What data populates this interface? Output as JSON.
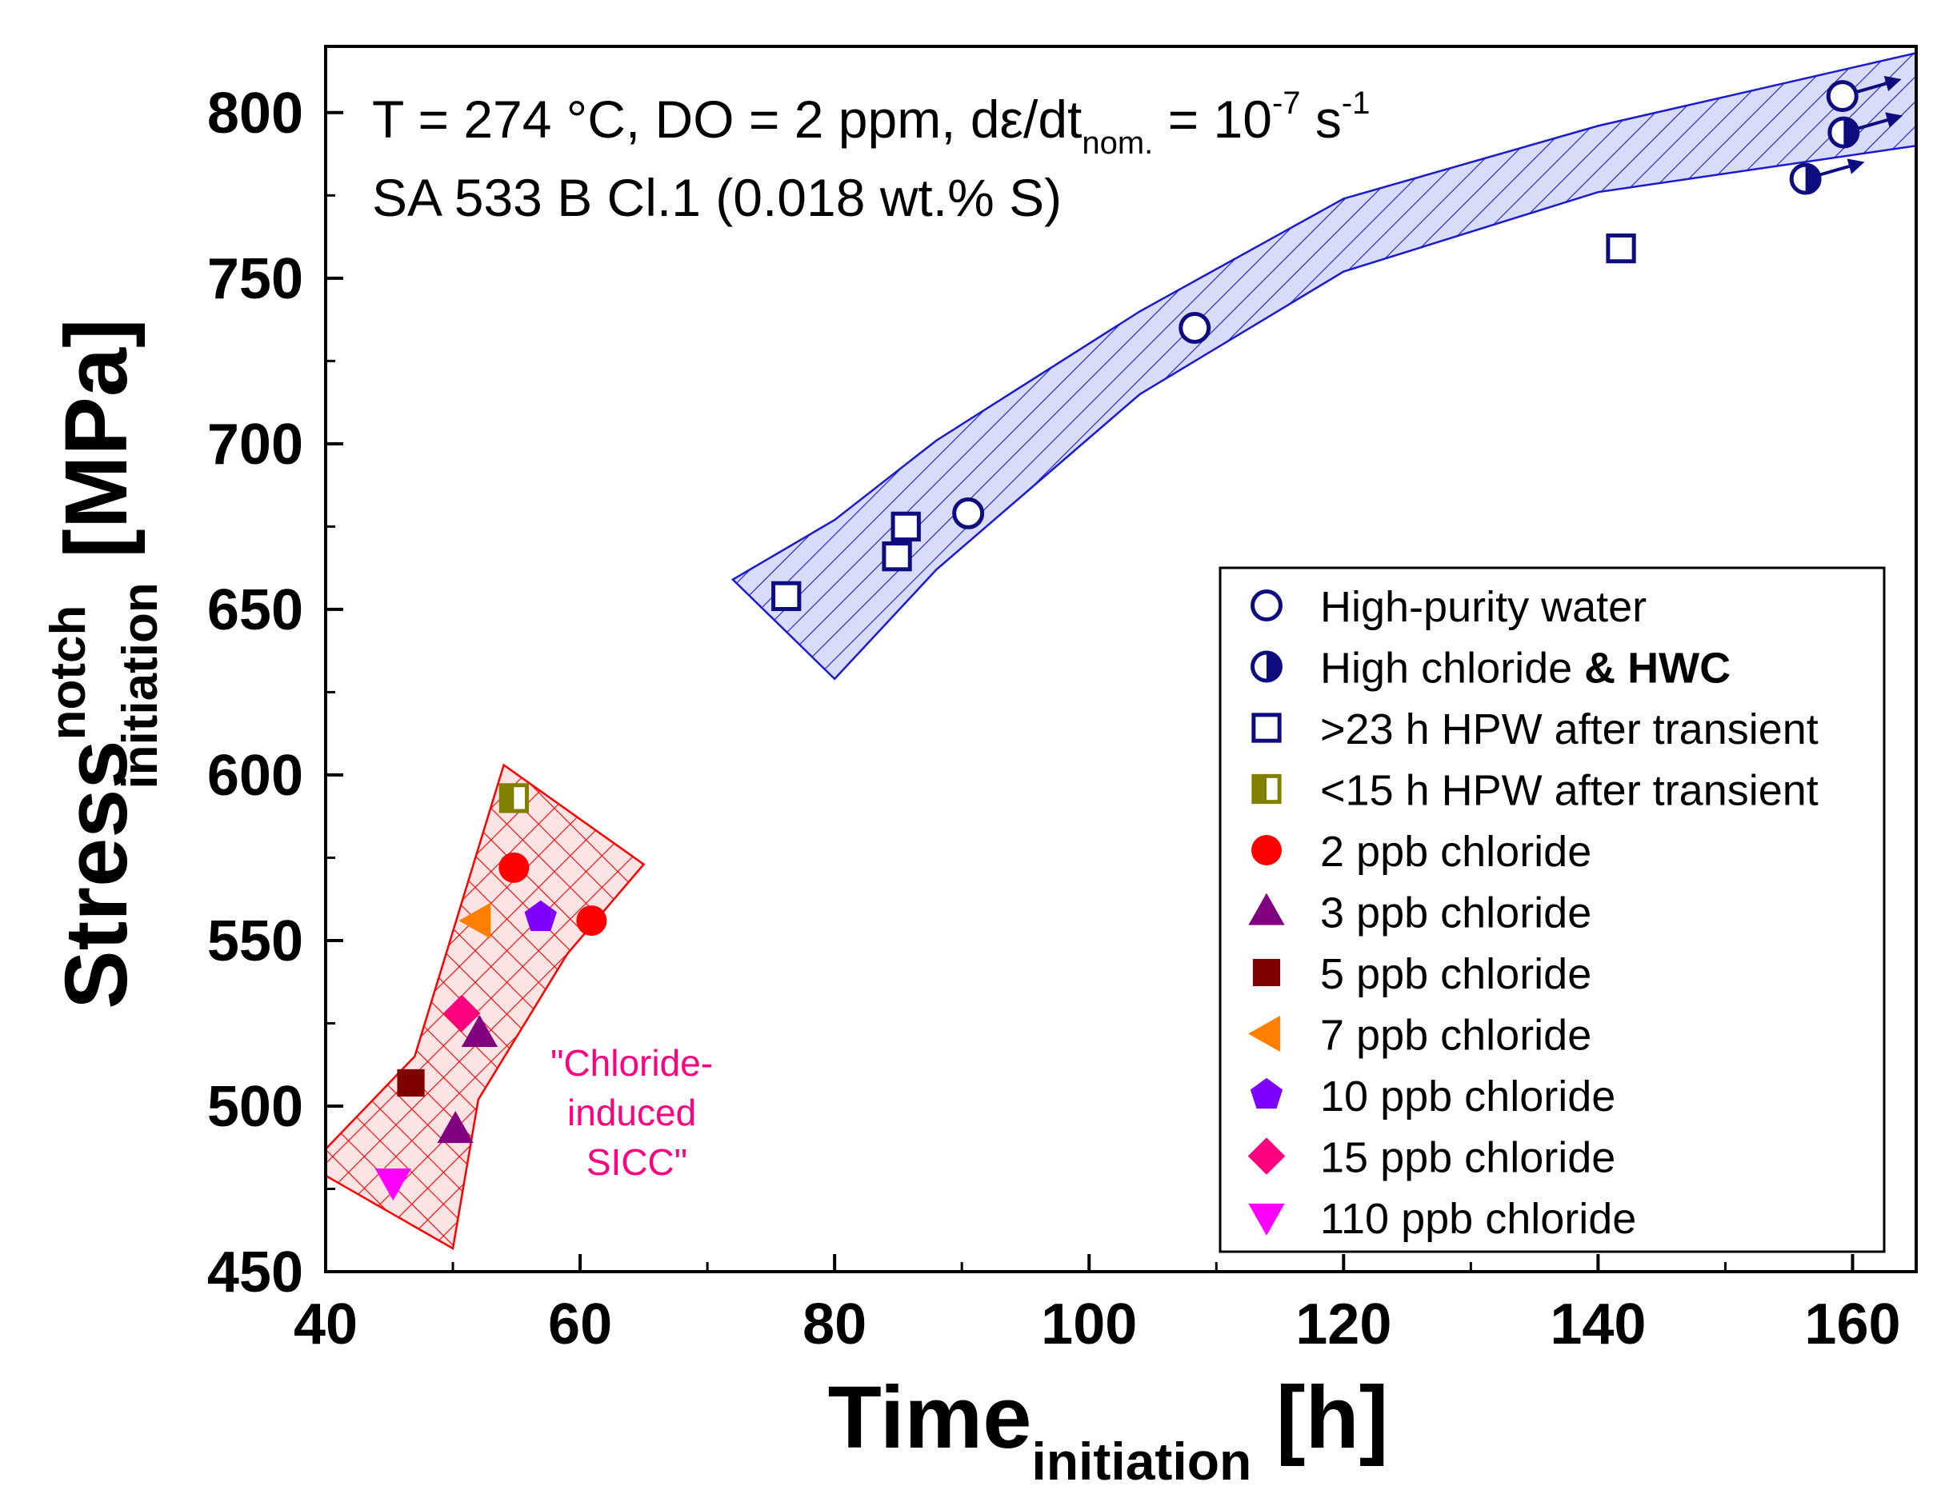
{
  "chart_data": {
    "type": "scatter",
    "annotations": {
      "line1_main": "T = 274 °C, DO = 2 ppm, dε/dt",
      "line1_sub": "nom.",
      "line1_eq": " = 10",
      "line1_exp": "-7",
      "line1_unit": " s",
      "line1_unit_exp": "-1",
      "line2": "SA 533 B Cl.1 (0.018 wt.% S)",
      "sicc_1": "\"Chloride-",
      "sicc_2": "induced",
      "sicc_3": "SICC\""
    },
    "xaxis": {
      "label_main": "Time",
      "label_sub": "initiation",
      "label_unit": " [h]",
      "min": 40,
      "max": 165,
      "ticks": [
        40,
        60,
        80,
        100,
        120,
        140,
        160
      ]
    },
    "yaxis": {
      "label_main": "Stress",
      "label_sup": "notch",
      "label_sub": "initiation",
      "label_unit": " [MPa]",
      "min": 450,
      "max": 820,
      "ticks": [
        450,
        500,
        550,
        600,
        650,
        700,
        750,
        800
      ]
    },
    "colors": {
      "navy": "#0d0d80",
      "olive": "#808000",
      "red": "#ff0000",
      "purple": "#800080",
      "maroon": "#800000",
      "orange": "#ff8000",
      "violet": "#8000ff",
      "pink": "#ff0080",
      "magenta": "#ff00ff",
      "band_blue": "#1a1ad0",
      "band_blue_fill": "#d8dcf8",
      "band_red": "#ff0000",
      "band_red_fill": "#fde4e4",
      "sicc_text": "#ff0080"
    },
    "bands": [
      {
        "name": "hpw-band",
        "polygon": [
          [
            72,
            659
          ],
          [
            80,
            629
          ],
          [
            88,
            662
          ],
          [
            104,
            715
          ],
          [
            120,
            752
          ],
          [
            140,
            776
          ],
          [
            165,
            790
          ],
          [
            165,
            818
          ],
          [
            140,
            796
          ],
          [
            120,
            774
          ],
          [
            104,
            740
          ],
          [
            88,
            701
          ],
          [
            80,
            677
          ]
        ]
      },
      {
        "name": "chloride-band",
        "polygon": [
          [
            40,
            487
          ],
          [
            47,
            515
          ],
          [
            54,
            603
          ],
          [
            65,
            573
          ],
          [
            59,
            546
          ],
          [
            52,
            502
          ],
          [
            50,
            457
          ],
          [
            40,
            479
          ]
        ]
      }
    ],
    "series": [
      {
        "name": "High-purity water",
        "marker": "circle-open",
        "color": "#0d0d80",
        "points": [
          [
            90.5,
            679
          ],
          [
            108.3,
            735
          ],
          [
            159.2,
            805
          ]
        ]
      },
      {
        "name": "High chloride & HWC",
        "name_main": "High chloride ",
        "name_bold": "& HWC",
        "marker": "circle-half",
        "color": "#0d0d80",
        "arrows": true,
        "points": [
          [
            156.3,
            780
          ],
          [
            159.3,
            794
          ]
        ]
      },
      {
        "name": ">23 h HPW after transient",
        "marker": "square-open",
        "color": "#0d0d80",
        "points": [
          [
            76.2,
            654
          ],
          [
            84.9,
            666
          ],
          [
            85.6,
            675
          ],
          [
            141.8,
            759
          ]
        ]
      },
      {
        "name": "<15 h HPW after transient",
        "marker": "square-half",
        "color": "#808000",
        "points": [
          [
            54.8,
            593
          ]
        ]
      },
      {
        "name": "2 ppb chloride",
        "marker": "circle",
        "color": "#ff0000",
        "points": [
          [
            54.8,
            572
          ],
          [
            60.9,
            556
          ]
        ]
      },
      {
        "name": "3 ppb chloride",
        "marker": "triangle-up",
        "color": "#800080",
        "points": [
          [
            52.1,
            522
          ],
          [
            50.2,
            493
          ]
        ]
      },
      {
        "name": "5 ppb chloride",
        "marker": "square",
        "color": "#800000",
        "points": [
          [
            46.7,
            507
          ]
        ]
      },
      {
        "name": "7 ppb chloride",
        "marker": "triangle-left",
        "color": "#ff8000",
        "points": [
          [
            51.9,
            556
          ]
        ]
      },
      {
        "name": "10 ppb chloride",
        "marker": "pentagon",
        "color": "#8000ff",
        "points": [
          [
            56.9,
            557
          ]
        ]
      },
      {
        "name": "15 ppb chloride",
        "marker": "diamond",
        "color": "#ff0080",
        "points": [
          [
            50.7,
            528
          ]
        ]
      },
      {
        "name": "110 ppb chloride",
        "marker": "triangle-down",
        "color": "#ff00ff",
        "points": [
          [
            45.3,
            477
          ]
        ]
      }
    ],
    "legend": {
      "position": "bottom-right"
    }
  }
}
